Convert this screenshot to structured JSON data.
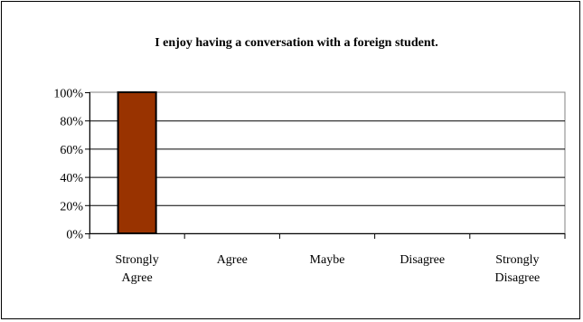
{
  "chart_data": {
    "type": "bar",
    "title": "I enjoy having a conversation with a foreign student.",
    "categories": [
      [
        "Strongly",
        "Agree"
      ],
      [
        "Agree"
      ],
      [
        "Maybe"
      ],
      [
        "Disagree"
      ],
      [
        "Strongly",
        "Disagree"
      ]
    ],
    "values": [
      100,
      0,
      0,
      0,
      0
    ],
    "y_tick_labels": [
      "0%",
      "20%",
      "40%",
      "60%",
      "80%",
      "100%"
    ],
    "ylim": [
      0,
      100
    ],
    "y_unit": "%",
    "grid": true,
    "legend": "none",
    "xlabel": "",
    "ylabel": "",
    "bar_color": "#993300"
  }
}
